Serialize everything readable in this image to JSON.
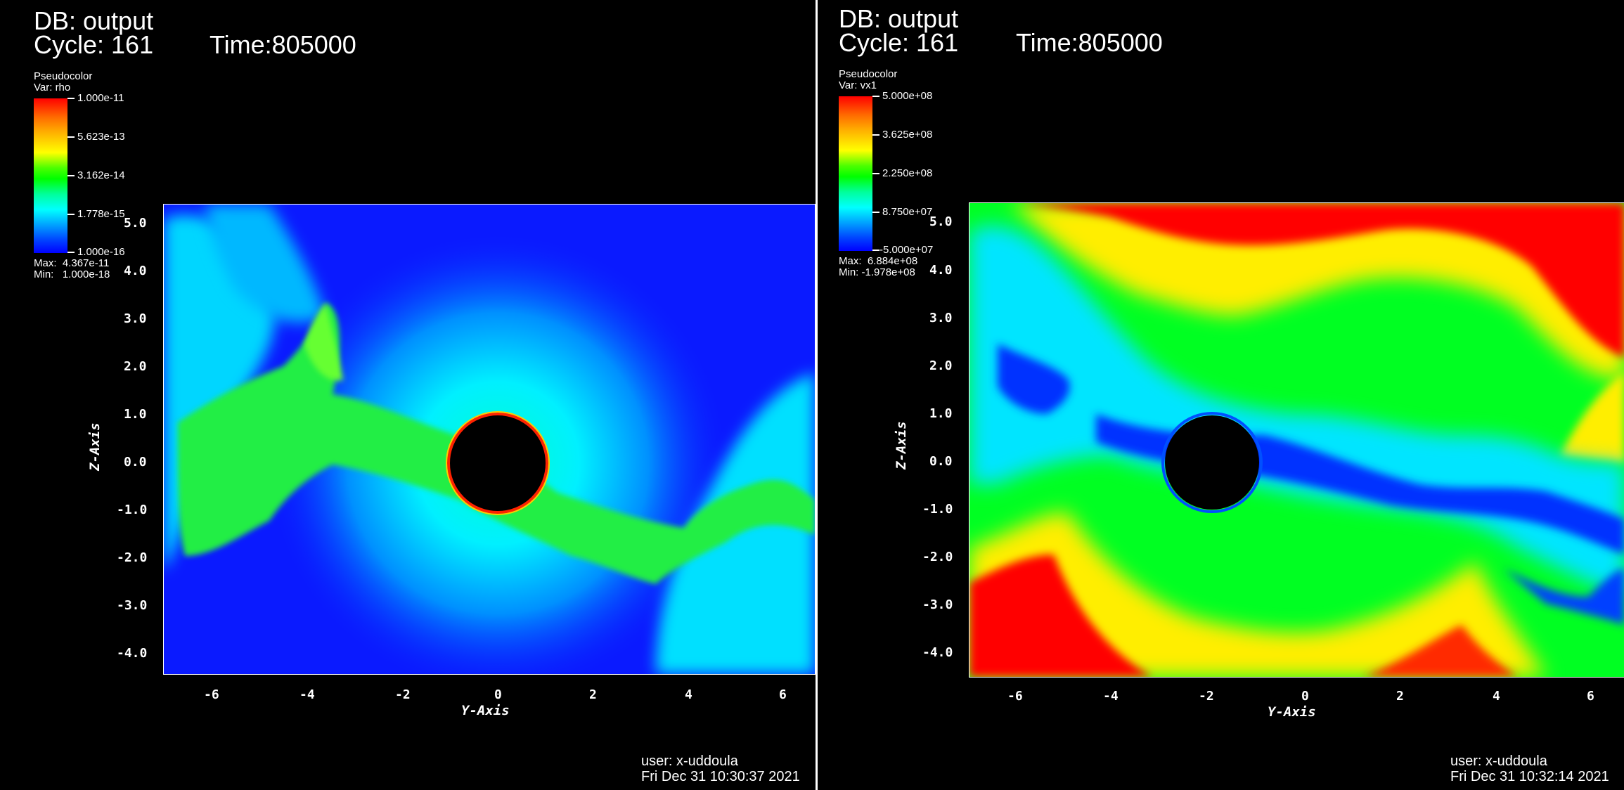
{
  "left": {
    "db": "DB: output",
    "cycle": "Cycle: 161",
    "time": "Time:805000",
    "legend": {
      "title": "Pseudocolor",
      "var": "Var: rho",
      "ticks": [
        "1.000e-11",
        "5.623e-13",
        "3.162e-14",
        "1.778e-15",
        "1.000e-16"
      ],
      "max": "Max:  4.367e-11",
      "min": "Min:   1.000e-18"
    },
    "x_axis_label": "Y-Axis",
    "y_axis_label": "Z-Axis",
    "x_ticks": [
      "-6",
      "-4",
      "-2",
      "0",
      "2",
      "4",
      "6"
    ],
    "y_ticks": [
      "5.0",
      "4.0",
      "3.0",
      "2.0",
      "1.0",
      "0.0",
      "-1.0",
      "-2.0",
      "-3.0",
      "-4.0"
    ],
    "user": "user: x-uddoula",
    "date": "Fri Dec 31 10:30:37 2021",
    "colors": {
      "background_field": "#0a1aff",
      "halo": "#00ffff",
      "stream": "#22ee44",
      "ring": "#ff2200"
    }
  },
  "right": {
    "db": "DB: output",
    "cycle": "Cycle: 161",
    "time": "Time:805000",
    "legend": {
      "title": "Pseudocolor",
      "var": "Var: vx1",
      "ticks": [
        "5.000e+08",
        "3.625e+08",
        "2.250e+08",
        "8.750e+07",
        "-5.000e+07"
      ],
      "max": "Max:  6.884e+08",
      "min": "Min: -1.978e+08"
    },
    "x_axis_label": "Y-Axis",
    "y_axis_label": "Z-Axis",
    "x_ticks": [
      "-6",
      "-4",
      "-2",
      "0",
      "2",
      "4",
      "6"
    ],
    "y_ticks": [
      "5.0",
      "4.0",
      "3.0",
      "2.0",
      "1.0",
      "0.0",
      "-1.0",
      "-2.0",
      "-3.0",
      "-4.0"
    ],
    "user": "user: x-uddoula",
    "date": "Fri Dec 31 10:32:14 2021",
    "colors": {
      "red": "#ff0000",
      "yellow": "#ffee00",
      "green": "#00ff22",
      "cyan": "#00ffff",
      "blue": "#0030ff"
    }
  }
}
